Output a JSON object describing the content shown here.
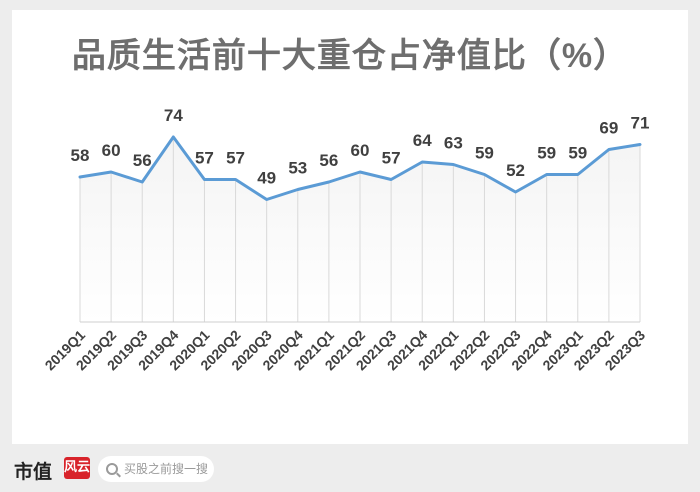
{
  "chart_data": {
    "type": "area",
    "title": "品质生活前十大重仓占净值比（%）",
    "categories": [
      "2019Q1",
      "2019Q2",
      "2019Q3",
      "2019Q4",
      "2020Q1",
      "2020Q2",
      "2020Q3",
      "2020Q4",
      "2021Q1",
      "2021Q2",
      "2021Q3",
      "2021Q4",
      "2022Q1",
      "2022Q2",
      "2022Q3",
      "2022Q4",
      "2023Q1",
      "2023Q2",
      "2023Q3"
    ],
    "series": [
      {
        "values": [
          58,
          60,
          56,
          74,
          57,
          57,
          49,
          53,
          56,
          60,
          57,
          64,
          63,
          59,
          52,
          59,
          59,
          69,
          71
        ]
      }
    ],
    "ylim": [
      0,
      100
    ],
    "grid": false,
    "line_color": "#5b9bd5"
  },
  "footer": {
    "brand_text": "市值",
    "brand_mark": "风云",
    "search_placeholder": "买股之前搜一搜"
  }
}
